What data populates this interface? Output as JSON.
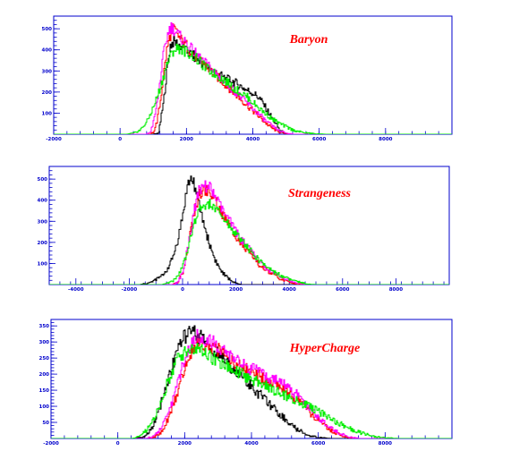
{
  "chart_data": [
    {
      "type": "line",
      "title": "Baryon",
      "xlim": [
        -2000,
        10000
      ],
      "ylim": [
        0,
        560
      ],
      "x_ticks": [
        "-2000",
        "0",
        "2000",
        "4000",
        "6000",
        "8000"
      ],
      "x_tick_values": [
        -2000,
        0,
        2000,
        4000,
        6000,
        8000
      ],
      "y_ticks": [
        "100",
        "200",
        "300",
        "400",
        "500"
      ],
      "y_tick_values": [
        100,
        200,
        300,
        400,
        500
      ],
      "series": [
        {
          "color": "#000000",
          "x": [
            -2000,
            1000,
            1150,
            1300,
            1400,
            1500,
            1600,
            1700,
            1800,
            2000,
            2200,
            2400,
            2600,
            2800,
            3000,
            3200,
            3400,
            3600,
            3800,
            4000,
            4200,
            4400,
            4600,
            4800,
            5000,
            10000
          ],
          "values": [
            0,
            0,
            5,
            150,
            300,
            420,
            440,
            430,
            420,
            390,
            370,
            340,
            320,
            300,
            280,
            260,
            250,
            230,
            210,
            195,
            170,
            120,
            70,
            20,
            0,
            0
          ]
        },
        {
          "color": "#ff0000",
          "x": [
            -2000,
            900,
            1000,
            1100,
            1200,
            1300,
            1400,
            1500,
            1600,
            1700,
            1800,
            2000,
            2200,
            2400,
            2600,
            2800,
            3000,
            3200,
            3400,
            3600,
            3800,
            4000,
            4200,
            4400,
            4600,
            4800,
            5000,
            5200,
            10000
          ],
          "values": [
            0,
            0,
            10,
            60,
            150,
            280,
            400,
            470,
            500,
            480,
            450,
            420,
            380,
            350,
            320,
            290,
            260,
            230,
            200,
            170,
            140,
            110,
            80,
            50,
            25,
            10,
            2,
            0,
            0
          ]
        },
        {
          "color": "#ff00ff",
          "x": [
            -2000,
            800,
            900,
            1000,
            1100,
            1200,
            1300,
            1400,
            1500,
            1600,
            1700,
            1800,
            2000,
            2200,
            2400,
            2600,
            2800,
            3000,
            3200,
            3400,
            3600,
            3800,
            4000,
            4200,
            4400,
            4600,
            4800,
            5000,
            5200,
            10000
          ],
          "values": [
            0,
            0,
            10,
            60,
            140,
            260,
            380,
            460,
            510,
            500,
            480,
            460,
            430,
            390,
            360,
            330,
            300,
            270,
            240,
            210,
            180,
            150,
            120,
            90,
            60,
            35,
            15,
            5,
            0,
            0
          ]
        },
        {
          "color": "#00ee00",
          "x": [
            -2000,
            200,
            400,
            600,
            800,
            1000,
            1200,
            1400,
            1600,
            1800,
            2000,
            2200,
            2400,
            2600,
            2800,
            3000,
            3200,
            3400,
            3600,
            3800,
            4000,
            4200,
            4400,
            4600,
            4800,
            5000,
            5200,
            5400,
            5600,
            5800,
            6000,
            6200,
            10000
          ],
          "values": [
            0,
            0,
            5,
            20,
            60,
            130,
            220,
            330,
            400,
            410,
            390,
            370,
            340,
            310,
            290,
            270,
            250,
            220,
            200,
            180,
            150,
            120,
            95,
            70,
            50,
            35,
            20,
            12,
            6,
            3,
            1,
            0,
            0
          ]
        }
      ]
    },
    {
      "type": "line",
      "title": "Strangeness",
      "xlim": [
        -5000,
        10000
      ],
      "ylim": [
        0,
        560
      ],
      "x_ticks": [
        "-4000",
        "-2000",
        "0",
        "2000",
        "4000",
        "6000",
        "8000"
      ],
      "x_tick_values": [
        -4000,
        -2000,
        0,
        2000,
        4000,
        6000,
        8000
      ],
      "y_ticks": [
        "100",
        "200",
        "300",
        "400",
        "500"
      ],
      "y_tick_values": [
        100,
        200,
        300,
        400,
        500
      ],
      "series": [
        {
          "color": "#000000",
          "x": [
            -5000,
            -1600,
            -1200,
            -800,
            -600,
            -400,
            -200,
            0,
            100,
            200,
            300,
            400,
            500,
            600,
            800,
            1000,
            1200,
            1400,
            1600,
            1800,
            2000,
            2200,
            10000
          ],
          "values": [
            0,
            0,
            10,
            40,
            70,
            120,
            210,
            330,
            420,
            480,
            500,
            490,
            430,
            380,
            280,
            190,
            120,
            70,
            40,
            20,
            5,
            0,
            0
          ]
        },
        {
          "color": "#ff0000",
          "x": [
            -5000,
            -400,
            -200,
            0,
            200,
            400,
            600,
            800,
            1000,
            1200,
            1400,
            1600,
            1800,
            2000,
            2200,
            2400,
            2600,
            2800,
            3000,
            3200,
            3400,
            3600,
            3800,
            4000,
            4200,
            4400,
            10000
          ],
          "values": [
            0,
            0,
            10,
            60,
            180,
            330,
            420,
            450,
            440,
            400,
            350,
            310,
            270,
            230,
            190,
            160,
            130,
            100,
            80,
            60,
            45,
            30,
            20,
            10,
            5,
            0,
            0
          ]
        },
        {
          "color": "#ff00ff",
          "x": [
            -5000,
            -400,
            -200,
            0,
            200,
            400,
            600,
            800,
            1000,
            1200,
            1400,
            1600,
            1800,
            2000,
            2200,
            2400,
            2600,
            2800,
            3000,
            3200,
            3400,
            3600,
            3800,
            4000,
            4200,
            4400,
            4600,
            10000
          ],
          "values": [
            0,
            0,
            10,
            60,
            190,
            340,
            440,
            470,
            460,
            420,
            370,
            330,
            290,
            250,
            210,
            180,
            150,
            120,
            95,
            70,
            55,
            40,
            28,
            18,
            10,
            4,
            0,
            0
          ]
        },
        {
          "color": "#00ee00",
          "x": [
            -5000,
            -800,
            -600,
            -400,
            -200,
            0,
            200,
            400,
            600,
            800,
            1000,
            1200,
            1400,
            1600,
            1800,
            2000,
            2200,
            2400,
            2600,
            2800,
            3000,
            3200,
            3400,
            3600,
            3800,
            4000,
            4200,
            4400,
            4600,
            4800,
            5000,
            10000
          ],
          "values": [
            0,
            0,
            5,
            15,
            40,
            90,
            180,
            280,
            350,
            380,
            380,
            360,
            330,
            300,
            270,
            240,
            210,
            180,
            150,
            120,
            100,
            80,
            62,
            48,
            35,
            25,
            16,
            10,
            5,
            2,
            0,
            0
          ]
        }
      ]
    },
    {
      "type": "line",
      "title": "HyperCharge",
      "xlim": [
        -2000,
        10000
      ],
      "ylim": [
        0,
        370
      ],
      "x_ticks": [
        "-2000",
        "0",
        "2000",
        "4000",
        "6000",
        "8000"
      ],
      "x_tick_values": [
        -2000,
        0,
        2000,
        4000,
        6000,
        8000
      ],
      "y_ticks": [
        "50",
        "100",
        "150",
        "200",
        "250",
        "300",
        "350"
      ],
      "y_tick_values": [
        50,
        100,
        150,
        200,
        250,
        300,
        350
      ],
      "series": [
        {
          "color": "#000000",
          "x": [
            -2000,
            500,
            800,
            1000,
            1200,
            1400,
            1600,
            1800,
            2000,
            2200,
            2400,
            2600,
            2800,
            3000,
            3200,
            3400,
            3600,
            3800,
            4000,
            4200,
            4400,
            4600,
            4800,
            5000,
            5200,
            5400,
            5600,
            5800,
            6000,
            6200,
            6400,
            10000
          ],
          "values": [
            0,
            0,
            5,
            30,
            80,
            150,
            220,
            280,
            320,
            330,
            320,
            300,
            280,
            260,
            240,
            220,
            200,
            180,
            160,
            140,
            120,
            100,
            80,
            60,
            40,
            25,
            15,
            8,
            3,
            1,
            0,
            0
          ]
        },
        {
          "color": "#ff0000",
          "x": [
            -2000,
            900,
            1100,
            1300,
            1500,
            1700,
            1900,
            2100,
            2300,
            2500,
            2700,
            2900,
            3100,
            3300,
            3500,
            3700,
            3900,
            4100,
            4300,
            4500,
            4700,
            4900,
            5100,
            5300,
            5500,
            5700,
            5900,
            6100,
            6300,
            6500,
            6700,
            6900,
            7100,
            10000
          ],
          "values": [
            0,
            0,
            5,
            20,
            60,
            120,
            190,
            250,
            290,
            300,
            290,
            280,
            270,
            250,
            235,
            220,
            210,
            200,
            190,
            180,
            170,
            160,
            145,
            125,
            105,
            85,
            65,
            45,
            30,
            18,
            8,
            2,
            0,
            0
          ]
        },
        {
          "color": "#ff00ff",
          "x": [
            -2000,
            800,
            1000,
            1200,
            1400,
            1600,
            1800,
            2000,
            2200,
            2400,
            2600,
            2800,
            3000,
            3200,
            3400,
            3600,
            3800,
            4000,
            4200,
            4400,
            4600,
            4800,
            5000,
            5200,
            5400,
            5600,
            5800,
            6000,
            6200,
            6400,
            6600,
            6800,
            7000,
            7200,
            10000
          ],
          "values": [
            0,
            0,
            5,
            20,
            55,
            110,
            180,
            250,
            300,
            320,
            310,
            300,
            285,
            270,
            255,
            240,
            225,
            215,
            205,
            195,
            185,
            175,
            165,
            150,
            130,
            110,
            85,
            65,
            45,
            30,
            18,
            8,
            3,
            0,
            0
          ]
        },
        {
          "color": "#00ee00",
          "x": [
            -2000,
            400,
            600,
            800,
            1000,
            1200,
            1400,
            1600,
            1800,
            2000,
            2200,
            2400,
            2600,
            2800,
            3000,
            3200,
            3400,
            3600,
            3800,
            4000,
            4200,
            4400,
            4600,
            4800,
            5000,
            5200,
            5400,
            5600,
            5800,
            6000,
            6200,
            6400,
            6600,
            6800,
            7000,
            7200,
            7400,
            7600,
            7800,
            8000,
            8200,
            8400,
            10000
          ],
          "values": [
            0,
            0,
            5,
            20,
            45,
            90,
            150,
            210,
            250,
            270,
            280,
            275,
            265,
            250,
            235,
            225,
            215,
            205,
            195,
            185,
            175,
            165,
            155,
            145,
            135,
            125,
            115,
            105,
            95,
            85,
            72,
            60,
            48,
            38,
            28,
            20,
            13,
            8,
            4,
            2,
            1,
            0,
            0
          ]
        }
      ]
    }
  ]
}
